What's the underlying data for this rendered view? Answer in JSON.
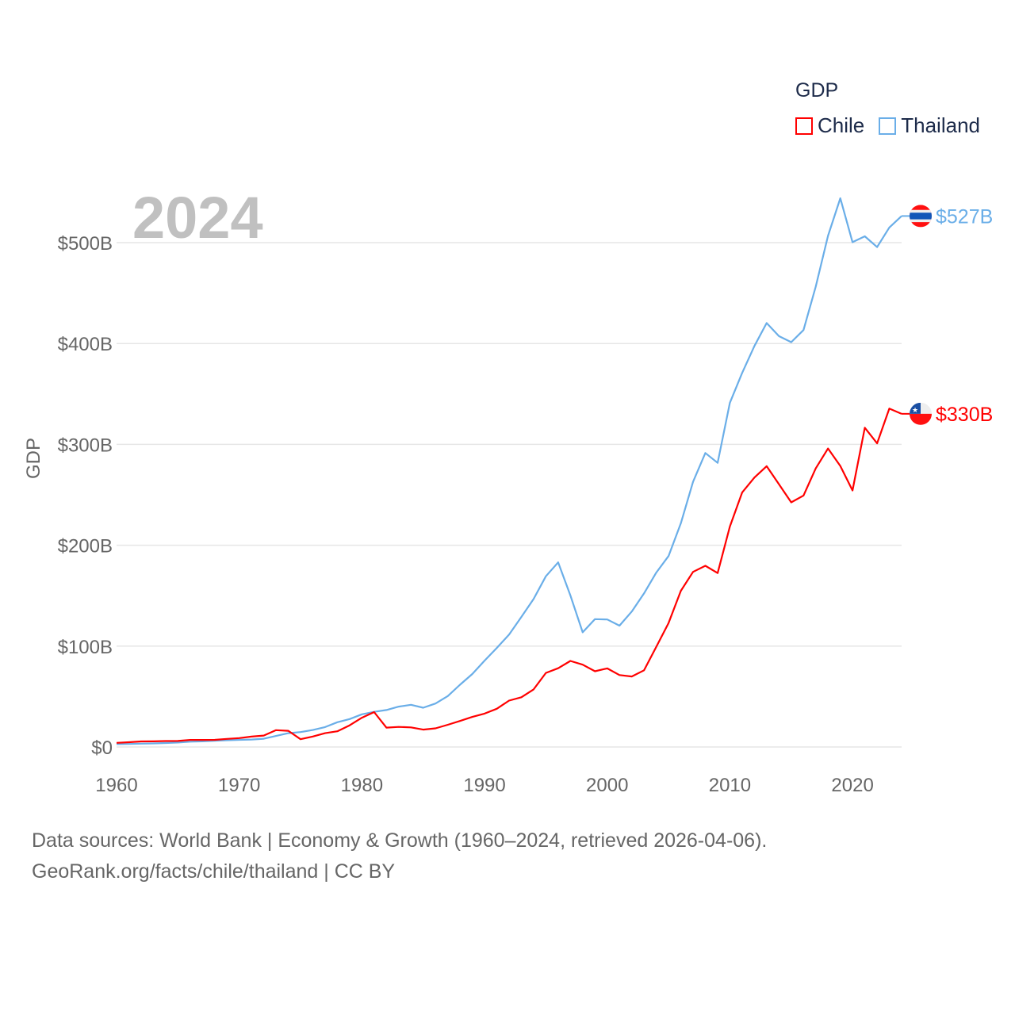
{
  "chart_data": {
    "type": "line",
    "title": "GDP",
    "year_label": "2024",
    "xlabel": "",
    "ylabel": "GDP",
    "xlim": [
      1960,
      2024
    ],
    "ylim": [
      0,
      500
    ],
    "y_ticks": [
      {
        "v": 0,
        "label": "$0"
      },
      {
        "v": 100,
        "label": "$100B"
      },
      {
        "v": 200,
        "label": "$200B"
      },
      {
        "v": 300,
        "label": "$300B"
      },
      {
        "v": 400,
        "label": "$400B"
      },
      {
        "v": 500,
        "label": "$500B"
      }
    ],
    "x_ticks": [
      1960,
      1970,
      1980,
      1990,
      2000,
      2010,
      2020
    ],
    "grid": true,
    "legend_position": "top-right",
    "x_start": 1960,
    "series": [
      {
        "name": "Chile",
        "color": "#ff0000",
        "end_label": "$330B",
        "flag": "chile-flag",
        "values": [
          4.1,
          4.7,
          5.5,
          5.6,
          5.9,
          6.0,
          7.0,
          7.0,
          7.1,
          8.0,
          8.8,
          10.3,
          11.3,
          16.7,
          16.0,
          7.7,
          10.4,
          13.7,
          15.6,
          21.5,
          29.0,
          34.6,
          19.2,
          19.9,
          19.4,
          17.2,
          18.5,
          22.0,
          25.8,
          29.8,
          33.1,
          37.9,
          46.0,
          49.3,
          57.1,
          73.4,
          78.1,
          85.3,
          81.6,
          75.1,
          77.9,
          71.3,
          69.9,
          76.0,
          99.2,
          122.9,
          154.8,
          173.6,
          179.6,
          172.4,
          218.5,
          252.3,
          267.1,
          278.4,
          260.5,
          242.5,
          249.3,
          276.2,
          295.9,
          278.6,
          254.3,
          316.5,
          301.0,
          335.5,
          330.3
        ]
      },
      {
        "name": "Thailand",
        "color": "#6aaee8",
        "end_label": "$527B",
        "flag": "thailand-flag",
        "values": [
          2.8,
          3.0,
          3.3,
          3.5,
          3.9,
          4.4,
          5.3,
          5.6,
          6.1,
          6.7,
          7.1,
          7.4,
          8.2,
          10.9,
          13.7,
          14.8,
          16.8,
          19.7,
          24.5,
          27.7,
          32.4,
          34.8,
          36.6,
          40.0,
          41.8,
          38.9,
          43.1,
          50.5,
          61.7,
          72.3,
          85.6,
          98.2,
          111.5,
          128.9,
          146.7,
          169.3,
          183.0,
          150.2,
          113.7,
          126.7,
          126.4,
          120.3,
          134.3,
          152.3,
          172.9,
          189.3,
          221.8,
          262.9,
          291.4,
          281.7,
          341.1,
          370.8,
          397.6,
          420.3,
          407.3,
          401.3,
          413.4,
          456.4,
          506.8,
          544.0,
          500.5,
          506.3,
          495.6,
          515.0,
          526.4
        ]
      }
    ]
  },
  "footer": {
    "line1": "Data sources: World Bank | Economy & Growth (1960–2024, retrieved 2026-04-06).",
    "line2": "GeoRank.org/facts/chile/thailand | CC BY"
  }
}
